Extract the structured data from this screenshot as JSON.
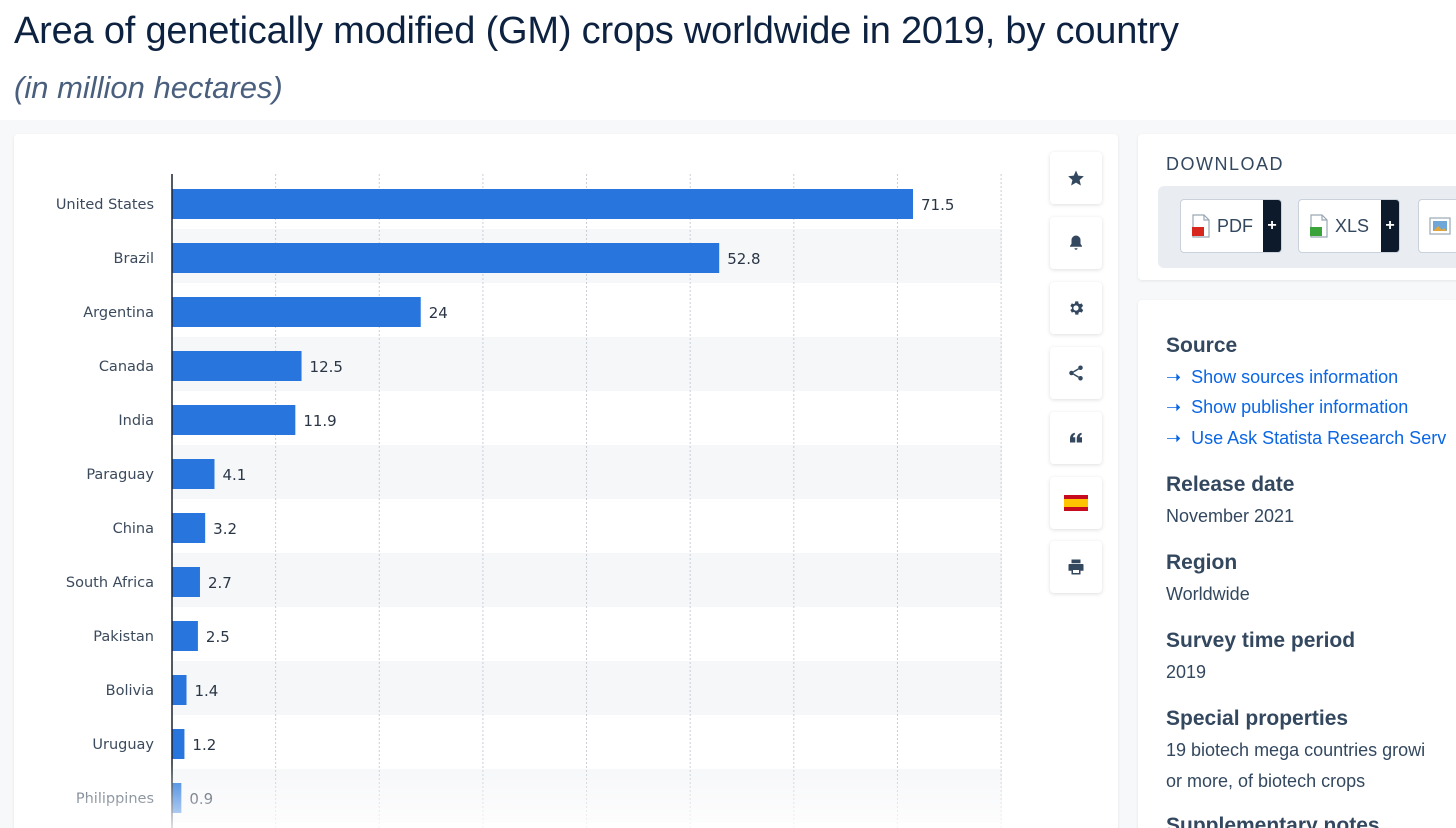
{
  "page": {
    "title": "Area of genetically modified (GM) crops worldwide in 2019, by country",
    "subtitle": "(in million hectares)"
  },
  "toolbar": {
    "buttons": [
      {
        "name": "favorite",
        "icon": "star-icon"
      },
      {
        "name": "notify",
        "icon": "bell-icon"
      },
      {
        "name": "settings",
        "icon": "gear-icon"
      },
      {
        "name": "share",
        "icon": "share-icon"
      },
      {
        "name": "cite",
        "icon": "quote-icon"
      },
      {
        "name": "language",
        "icon": "spain-flag-icon"
      },
      {
        "name": "print",
        "icon": "print-icon"
      }
    ]
  },
  "download": {
    "title": "DOWNLOAD",
    "pdf_label": "PDF",
    "xls_label": "XLS",
    "plus": "+"
  },
  "info": {
    "source_heading": "Source",
    "links": [
      "Show sources information",
      "Show publisher information",
      "Use Ask Statista Research Serv"
    ],
    "release_heading": "Release date",
    "release_value": "November 2021",
    "region_heading": "Region",
    "region_value": "Worldwide",
    "survey_heading": "Survey time period",
    "survey_value": "2019",
    "special_heading": "Special properties",
    "special_line1": "19 biotech mega countries growi",
    "special_line2": "or more, of biotech crops",
    "supp_heading": "Supplementary notes"
  },
  "colors": {
    "bar": "#2876dd",
    "link": "#0a66e4",
    "heading": "#33485f"
  },
  "chart_data": {
    "type": "bar",
    "orientation": "horizontal",
    "title": "Area of genetically modified (GM) crops worldwide in 2019, by country",
    "unit": "million hectares",
    "categories": [
      "United States",
      "Brazil",
      "Argentina",
      "Canada",
      "India",
      "Paraguay",
      "China",
      "South Africa",
      "Pakistan",
      "Bolivia",
      "Uruguay",
      "Philippines"
    ],
    "values": [
      71.5,
      52.8,
      24,
      12.5,
      11.9,
      4.1,
      3.2,
      2.7,
      2.5,
      1.4,
      1.2,
      0.9
    ],
    "labels": [
      "71.5",
      "52.8",
      "24",
      "12.5",
      "11.9",
      "4.1",
      "3.2",
      "2.7",
      "2.5",
      "1.4",
      "1.2",
      "0.9"
    ],
    "xlim": [
      0,
      80
    ],
    "grid": true
  }
}
